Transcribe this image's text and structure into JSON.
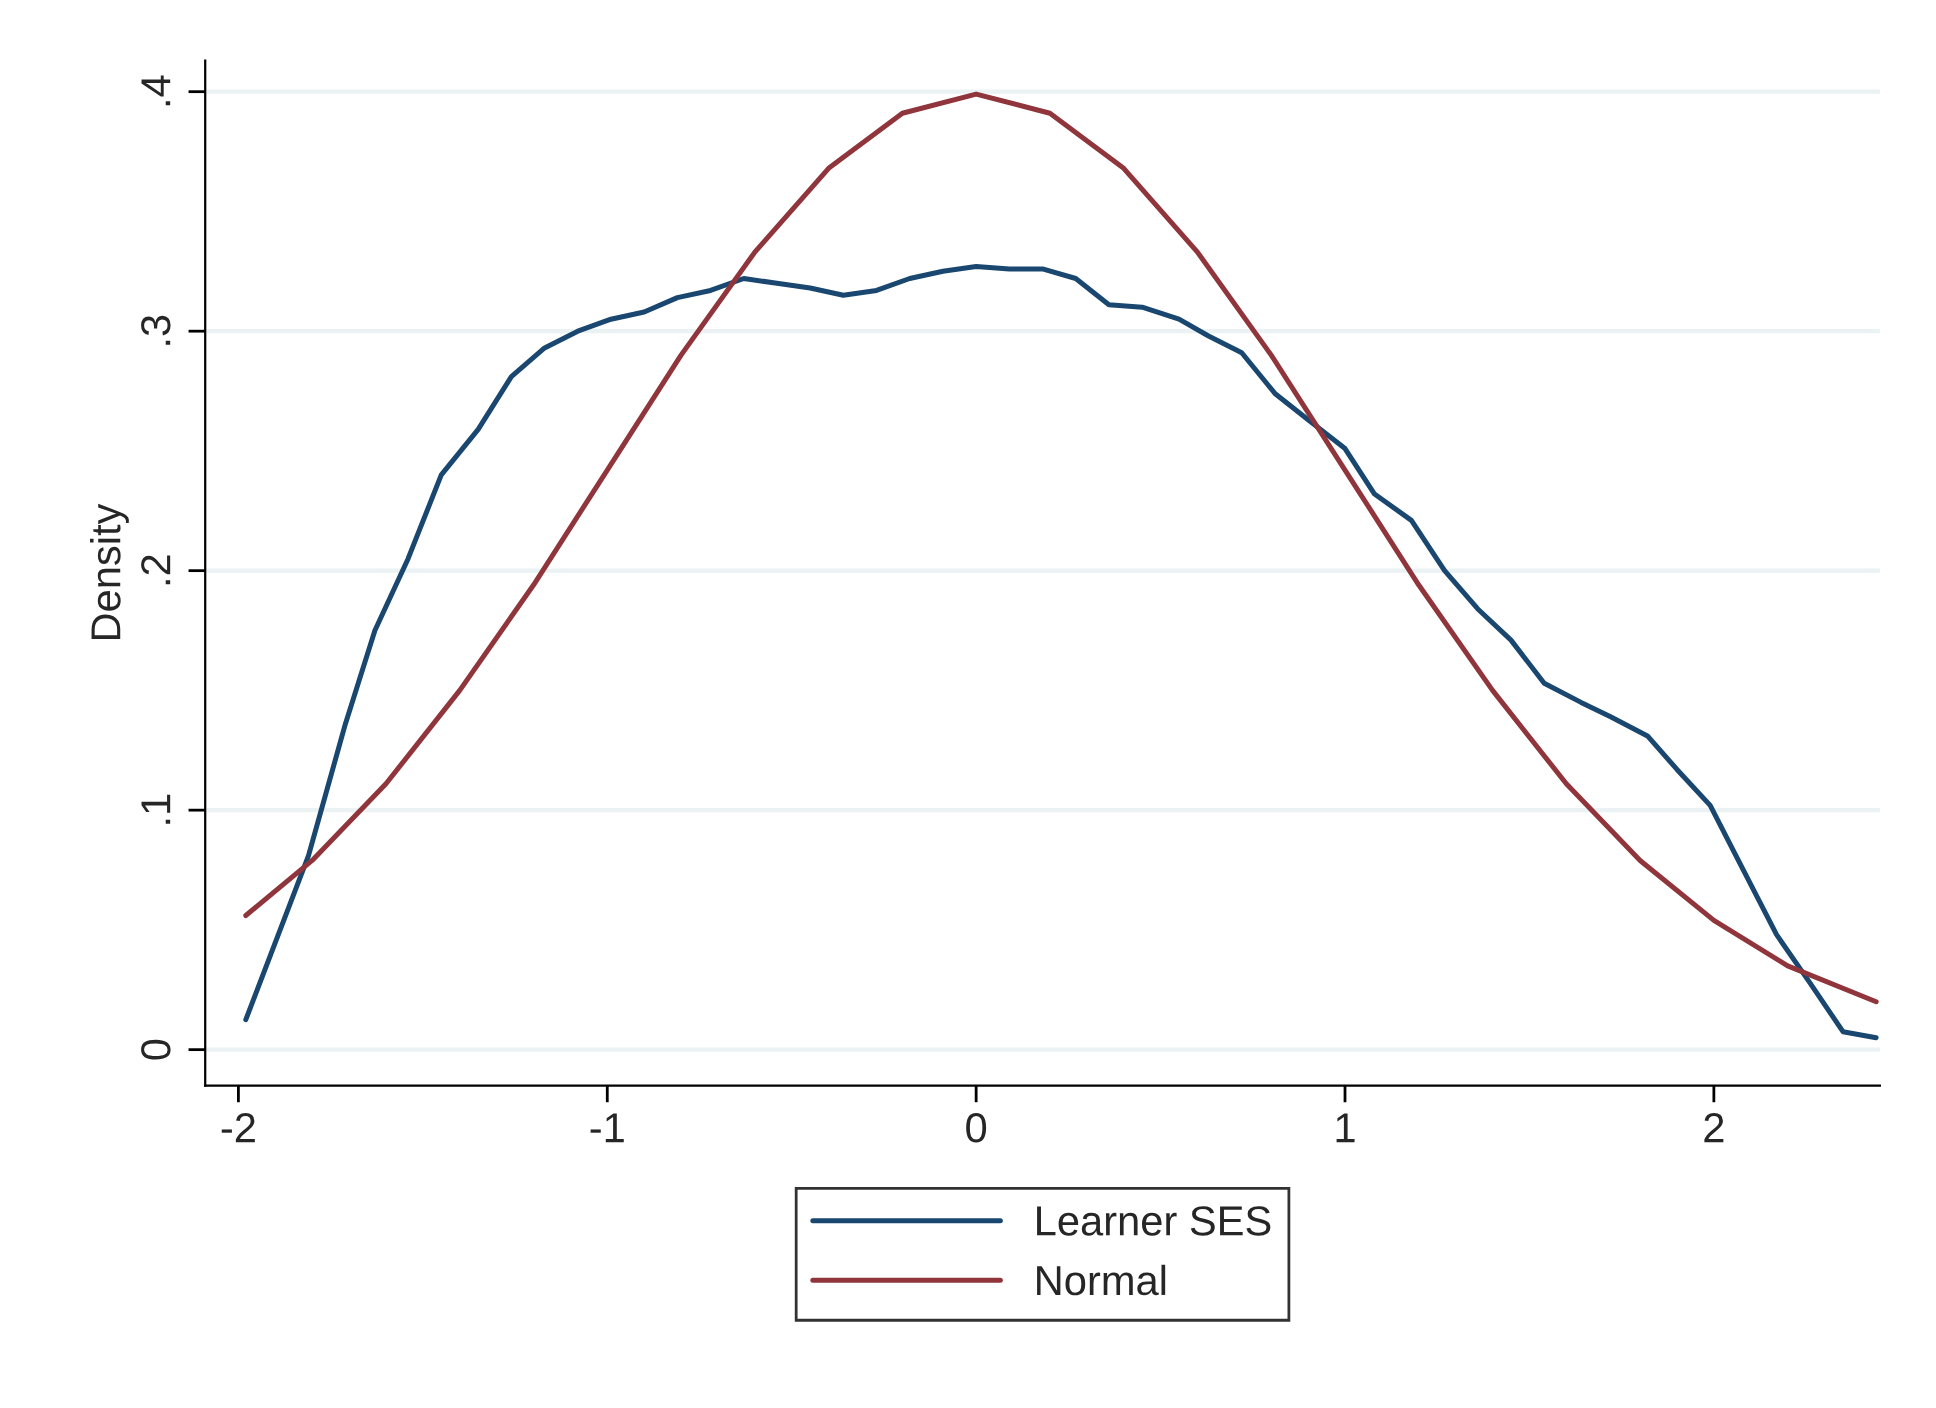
{
  "chart_data": {
    "type": "line",
    "ylabel": "Density",
    "series": [
      {
        "name": "Learner SES",
        "color": "#1a476f",
        "x": [
          -1.98,
          -1.81,
          -1.71,
          -1.63,
          -1.54,
          -1.45,
          -1.35,
          -1.26,
          -1.17,
          -1.08,
          -0.99,
          -0.9,
          -0.81,
          -0.72,
          -0.63,
          -0.54,
          -0.45,
          -0.36,
          -0.27,
          -0.18,
          -0.09,
          0.0,
          0.09,
          0.18,
          0.27,
          0.36,
          0.45,
          0.55,
          0.63,
          0.72,
          0.81,
          0.9,
          1.0,
          1.08,
          1.18,
          1.27,
          1.36,
          1.45,
          1.54,
          1.64,
          1.72,
          1.82,
          1.9,
          1.99,
          2.08,
          2.17,
          2.26,
          2.35,
          2.44
        ],
        "values": [
          0.0125,
          0.081,
          0.136,
          0.175,
          0.205,
          0.24,
          0.259,
          0.281,
          0.293,
          0.3,
          0.305,
          0.308,
          0.314,
          0.317,
          0.322,
          0.32,
          0.318,
          0.315,
          0.317,
          0.322,
          0.325,
          0.327,
          0.326,
          0.326,
          0.322,
          0.311,
          0.31,
          0.305,
          0.298,
          0.291,
          0.274,
          0.263,
          0.251,
          0.232,
          0.221,
          0.2,
          0.184,
          0.171,
          0.153,
          0.145,
          0.139,
          0.131,
          0.117,
          0.102,
          0.075,
          0.048,
          0.028,
          0.0075,
          0.005
        ]
      },
      {
        "name": "Normal",
        "color": "#90353b",
        "x": [
          -1.98,
          -1.8,
          -1.6,
          -1.4,
          -1.2,
          -1.0,
          -0.8,
          -0.6,
          -0.4,
          -0.2,
          0.0,
          0.2,
          0.4,
          0.6,
          0.8,
          1.0,
          1.2,
          1.4,
          1.6,
          1.8,
          2.0,
          2.2,
          2.44
        ],
        "values": [
          0.056,
          0.079,
          0.111,
          0.15,
          0.194,
          0.242,
          0.29,
          0.333,
          0.368,
          0.391,
          0.399,
          0.391,
          0.368,
          0.333,
          0.29,
          0.242,
          0.194,
          0.15,
          0.111,
          0.079,
          0.054,
          0.035,
          0.02
        ]
      }
    ],
    "xlim": [
      -2.09,
      2.45
    ],
    "xticks": [
      -2,
      -1,
      0,
      1,
      2
    ],
    "ylim": [
      -0.015,
      0.413
    ],
    "yticks": [
      0,
      {
        "value": 0.1,
        "label": ".1"
      },
      {
        "value": 0.2,
        "label": ".2"
      },
      {
        "value": 0.3,
        "label": ".3"
      },
      {
        "value": 0.4,
        "label": ".4"
      }
    ],
    "grid": "y",
    "legend": "bottom",
    "line_style": "solid",
    "marker": "none"
  }
}
